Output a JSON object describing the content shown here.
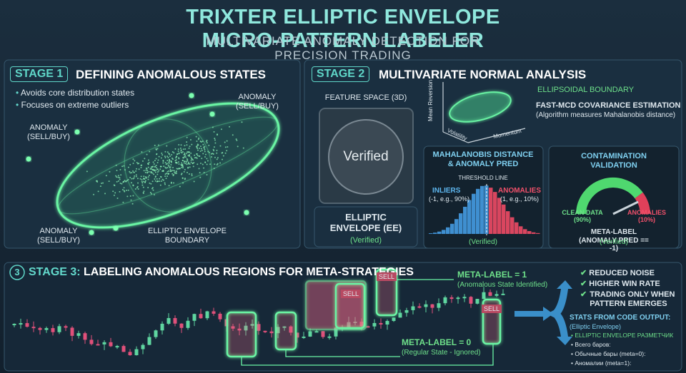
{
  "header": {
    "title": "TRIXTER ELLIPTIC ENVELOPE MICRO-PATTERN LABELER",
    "subtitle": "MULTIVARIATE ANOMALY DETECTION FOR PRECISION TRADING"
  },
  "stage1": {
    "badge": "STAGE 1",
    "heading": "DEFINING ANOMALOUS STATES",
    "bullets": [
      "Avoids core distribution states",
      "Focuses on extreme outliers"
    ],
    "anomaly_labels": [
      "ANOMALY\n(SELL/BUY)",
      "ANOMALY\n(SELL/BUY)",
      "ANOMALY\n(SELL/BUY)"
    ],
    "boundary_label": "ELLIPTIC ENVELOPE\nBOUNDARY"
  },
  "stage2": {
    "badge": "STAGE 2",
    "heading": "MULTIVARIATE NORMAL ANALYSIS",
    "feature_space": {
      "label": "FEATURE SPACE (3D)",
      "center": "Verified",
      "caption": "ELLIPTIC\nENVELOPE (EE)",
      "status": "(Verified)"
    },
    "plot": {
      "boundary": "ELLIPSOIDAL BOUNDARY",
      "axes": [
        "Mean Reversion",
        "Volatility",
        "Momentum"
      ],
      "method": "FAST-MCD COVARIANCE ESTIMATION",
      "method_note": "(Algorithm measures Mahalanobis distance)"
    },
    "mahalanobis": {
      "title": "MAHALANOBIS DISTANCE\n& ANOMALY PRED",
      "threshold": "THRESHOLD LINE",
      "inliers": "INLIERS",
      "inliers_note": "(-1, e.g., 90%)",
      "anomalies": "ANOMALIES",
      "anomalies_note": "(1, e.g., 10%)",
      "status": "(Verified)"
    },
    "contamination": {
      "title": "CONTAMINATION VALIDATION",
      "clean": "CLEAN DATA\n(90%)",
      "anomalies": "ANOMALIES\n(10%)",
      "meta": "META-LABEL (ANOMALY PRED == -1)",
      "status": "(Verified)"
    }
  },
  "stage3": {
    "number": "3",
    "badge": "STAGE 3:",
    "heading": "LABELING ANOMALOUS REGIONS FOR META-STRATEGIES",
    "sell_labels": [
      "SELL",
      "SELL",
      "SELL"
    ],
    "meta1": "META-LABEL = 1",
    "meta1_note": "(Anomalous State Identified)",
    "meta0": "META-LABEL = 0",
    "meta0_note": "(Regular State - Ignored)",
    "benefits": [
      "REDUCED NOISE",
      "HIGHER WIN RATE",
      "TRADING ONLY WHEN\nPATTERN EMERGES"
    ],
    "stats_title": "STATS FROM CODE OUTPUT:",
    "stats_note": "(Elliptic Envelope)",
    "stats": [
      "• ELLIPTIC ENVELOPE РАЗМЕТЧИК",
      "• Всего баров:",
      "• Обычные бары (meta=0):",
      "• Аномалии (meta=1):"
    ]
  }
}
